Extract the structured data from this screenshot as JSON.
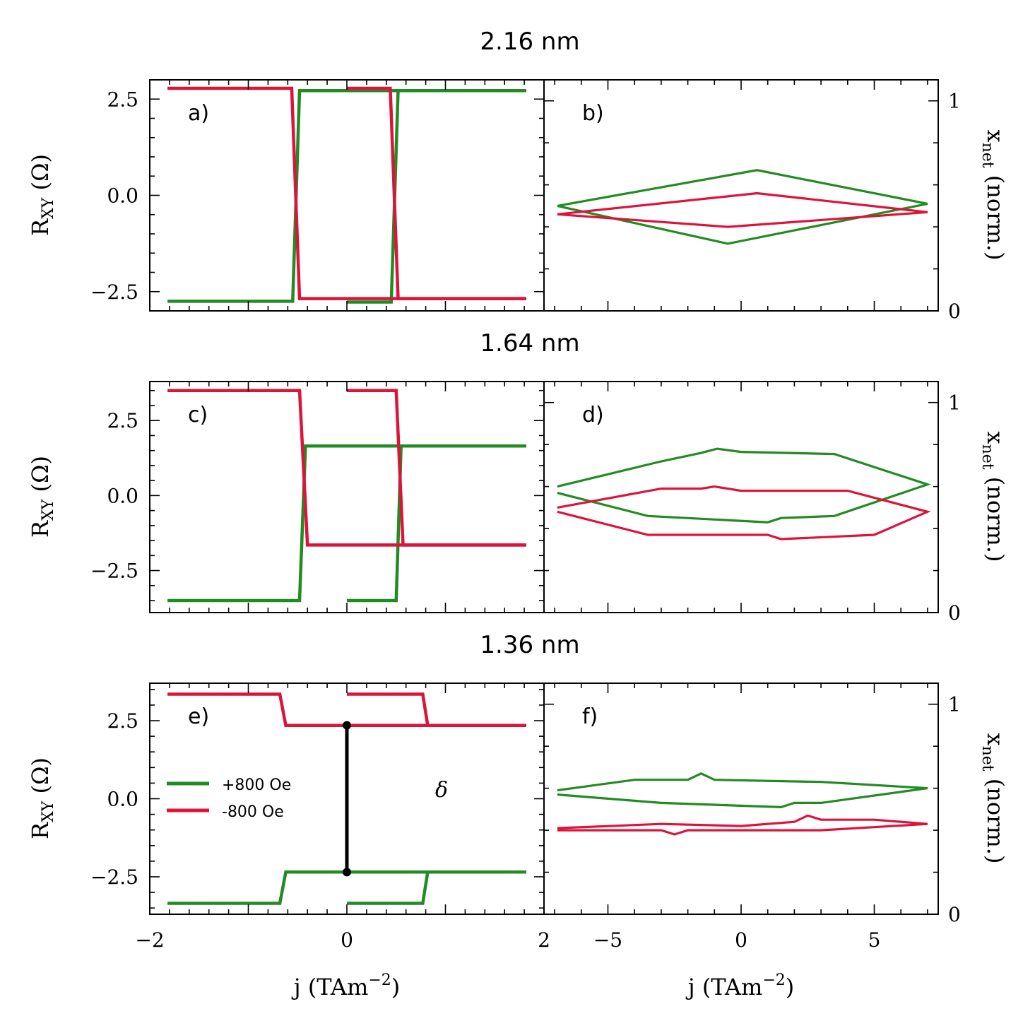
{
  "figure": {
    "colors": {
      "pos": "#228b22",
      "neg": "#dc143c",
      "delta": "#000000"
    },
    "legend": [
      {
        "label": "+800 Oe",
        "color": "#228b22"
      },
      {
        "label": "-800 Oe",
        "color": "#dc143c"
      }
    ],
    "delta_label": "δ",
    "x_label_left": "j (TAm",
    "x_label_right": "j (TAm",
    "x_label_exp": "−2",
    "y_label_left": "R",
    "y_label_left_sub": "XY",
    "y_label_left_unit": " (Ω)",
    "y_label_right": "x",
    "y_label_right_sub": "net",
    "y_label_right_unit": " (norm.)"
  },
  "chart_data": [
    {
      "type": "line",
      "panel": "a)",
      "title": "2.16 nm",
      "xlabel": "j (TAm−2)",
      "ylabel": "RXY (Ω)",
      "xlim": [
        -2,
        2
      ],
      "ylim": [
        -3.0,
        3.0
      ],
      "yticks": [
        2.5,
        0.0,
        -2.5
      ],
      "ytick_labels": [
        "2.5",
        "0.0",
        "−2.5"
      ],
      "series": [
        {
          "name": "+800 Oe",
          "color": "#228b22",
          "segments": [
            [
              [
                -1.82,
                -2.75
              ],
              [
                -0.55,
                -2.75
              ],
              [
                -0.48,
                2.72
              ],
              [
                1.82,
                2.72
              ]
            ],
            [
              [
                0.0,
                -2.77
              ],
              [
                0.45,
                -2.77
              ],
              [
                0.52,
                2.72
              ],
              [
                1.82,
                2.72
              ]
            ]
          ]
        },
        {
          "name": "-800 Oe",
          "color": "#dc143c",
          "segments": [
            [
              [
                -1.82,
                2.78
              ],
              [
                -0.56,
                2.78
              ],
              [
                -0.48,
                -2.68
              ],
              [
                1.82,
                -2.68
              ]
            ],
            [
              [
                0.0,
                2.78
              ],
              [
                0.44,
                2.78
              ],
              [
                0.52,
                -2.68
              ],
              [
                1.82,
                -2.68
              ]
            ]
          ]
        }
      ]
    },
    {
      "type": "line",
      "panel": "b)",
      "xlabel": "j (TAm−2)",
      "ylabel": "xnet (norm.)",
      "xlim": [
        -7.4,
        7.4
      ],
      "ylim": [
        0,
        1.1
      ],
      "yticks": [
        1,
        0
      ],
      "ytick_labels": [
        "1",
        "0"
      ],
      "series": [
        {
          "name": "+800 Oe",
          "color": "#228b22",
          "segments": [
            [
              [
                -6.9,
                0.5
              ],
              [
                0.6,
                0.67
              ],
              [
                7.0,
                0.51
              ],
              [
                -0.5,
                0.32
              ],
              [
                -6.9,
                0.5
              ]
            ]
          ]
        },
        {
          "name": "-800 Oe",
          "color": "#dc143c",
          "segments": [
            [
              [
                -6.9,
                0.46
              ],
              [
                0.6,
                0.56
              ],
              [
                7.0,
                0.47
              ],
              [
                -0.5,
                0.4
              ],
              [
                -6.9,
                0.46
              ]
            ]
          ]
        }
      ]
    },
    {
      "type": "line",
      "panel": "c)",
      "title": "1.64 nm",
      "xlabel": "j (TAm−2)",
      "ylabel": "RXY (Ω)",
      "xlim": [
        -2,
        2
      ],
      "ylim": [
        -3.9,
        3.8
      ],
      "yticks": [
        2.5,
        0.0,
        -2.5
      ],
      "ytick_labels": [
        "2.5",
        "0.0",
        "−2.5"
      ],
      "series": [
        {
          "name": "+800 Oe",
          "color": "#228b22",
          "segments": [
            [
              [
                -1.82,
                -3.5
              ],
              [
                -0.48,
                -3.5
              ],
              [
                -0.42,
                1.65
              ],
              [
                1.82,
                1.65
              ]
            ],
            [
              [
                0.0,
                -3.5
              ],
              [
                0.5,
                -3.5
              ],
              [
                0.55,
                1.65
              ],
              [
                1.82,
                1.65
              ]
            ]
          ]
        },
        {
          "name": "-800 Oe",
          "color": "#dc143c",
          "segments": [
            [
              [
                -1.82,
                3.5
              ],
              [
                -0.48,
                3.5
              ],
              [
                -0.4,
                -1.65
              ],
              [
                1.82,
                -1.65
              ]
            ],
            [
              [
                0.0,
                3.5
              ],
              [
                0.5,
                3.5
              ],
              [
                0.57,
                -1.65
              ],
              [
                1.82,
                -1.65
              ]
            ]
          ]
        }
      ]
    },
    {
      "type": "line",
      "panel": "d)",
      "xlabel": "j (TAm−2)",
      "ylabel": "xnet (norm.)",
      "xlim": [
        -7.4,
        7.4
      ],
      "ylim": [
        0,
        1.1
      ],
      "yticks": [
        1,
        0
      ],
      "ytick_labels": [
        "1",
        "0"
      ],
      "series": [
        {
          "name": "+800 Oe",
          "color": "#228b22",
          "segments": [
            [
              [
                -6.9,
                0.6
              ],
              [
                -3,
                0.72
              ],
              [
                -1.5,
                0.76
              ],
              [
                -0.9,
                0.78
              ],
              [
                0,
                0.765
              ],
              [
                3.5,
                0.755
              ],
              [
                7.0,
                0.61
              ],
              [
                3.5,
                0.46
              ],
              [
                1.5,
                0.45
              ],
              [
                1.0,
                0.43
              ],
              [
                -3.5,
                0.46
              ],
              [
                -6.9,
                0.57
              ]
            ]
          ]
        },
        {
          "name": "-800 Oe",
          "color": "#dc143c",
          "segments": [
            [
              [
                -6.9,
                0.5
              ],
              [
                -3,
                0.59
              ],
              [
                -1.5,
                0.59
              ],
              [
                -1.0,
                0.6
              ],
              [
                0,
                0.58
              ],
              [
                4.0,
                0.58
              ],
              [
                7.0,
                0.48
              ],
              [
                5.0,
                0.37
              ],
              [
                1.5,
                0.35
              ],
              [
                1.0,
                0.37
              ],
              [
                -3.5,
                0.37
              ],
              [
                -6.9,
                0.48
              ]
            ]
          ]
        }
      ]
    },
    {
      "type": "line",
      "panel": "e)",
      "title": "1.36 nm",
      "xlabel": "j (TAm−2)",
      "ylabel": "RXY (Ω)",
      "xlim": [
        -2,
        2
      ],
      "ylim": [
        -3.7,
        3.7
      ],
      "xticks": [
        -2,
        0,
        2
      ],
      "xtick_labels": [
        "−2",
        "0",
        "2"
      ],
      "yticks": [
        2.5,
        0.0,
        -2.5
      ],
      "ytick_labels": [
        "2.5",
        "0.0",
        "−2.5"
      ],
      "series": [
        {
          "name": "+800 Oe",
          "color": "#228b22",
          "segments": [
            [
              [
                -1.82,
                -3.35
              ],
              [
                -0.68,
                -3.35
              ],
              [
                -0.62,
                -2.35
              ],
              [
                1.82,
                -2.35
              ]
            ],
            [
              [
                0.0,
                -3.35
              ],
              [
                0.77,
                -3.35
              ],
              [
                0.82,
                -2.35
              ],
              [
                1.82,
                -2.35
              ]
            ]
          ]
        },
        {
          "name": "-800 Oe",
          "color": "#dc143c",
          "segments": [
            [
              [
                -1.82,
                3.35
              ],
              [
                -0.68,
                3.35
              ],
              [
                -0.62,
                2.35
              ],
              [
                1.82,
                2.35
              ]
            ],
            [
              [
                0.0,
                3.35
              ],
              [
                0.77,
                3.35
              ],
              [
                0.82,
                2.35
              ],
              [
                1.82,
                2.35
              ]
            ]
          ]
        }
      ],
      "annotation": {
        "label": "δ",
        "x": 0.0,
        "y_from": -2.35,
        "y_to": 2.35
      }
    },
    {
      "type": "line",
      "panel": "f)",
      "xlabel": "j (TAm−2)",
      "ylabel": "xnet (norm.)",
      "xlim": [
        -7.4,
        7.4
      ],
      "ylim": [
        0,
        1.1
      ],
      "xticks": [
        -5,
        0,
        5
      ],
      "xtick_labels": [
        "−5",
        "0",
        "5"
      ],
      "yticks": [
        1,
        0
      ],
      "ytick_labels": [
        "1",
        "0"
      ],
      "series": [
        {
          "name": "+800 Oe",
          "color": "#228b22",
          "segments": [
            [
              [
                -6.9,
                0.59
              ],
              [
                -4,
                0.64
              ],
              [
                -2,
                0.64
              ],
              [
                -1.5,
                0.67
              ],
              [
                -1,
                0.64
              ],
              [
                3,
                0.63
              ],
              [
                7.0,
                0.6
              ],
              [
                3,
                0.53
              ],
              [
                2,
                0.53
              ],
              [
                1.5,
                0.51
              ],
              [
                -3,
                0.53
              ],
              [
                -6.9,
                0.57
              ]
            ]
          ]
        },
        {
          "name": "-800 Oe",
          "color": "#dc143c",
          "segments": [
            [
              [
                -6.9,
                0.41
              ],
              [
                -3,
                0.43
              ],
              [
                0,
                0.42
              ],
              [
                2,
                0.44
              ],
              [
                2.5,
                0.47
              ],
              [
                3,
                0.45
              ],
              [
                5,
                0.45
              ],
              [
                7.0,
                0.43
              ],
              [
                3,
                0.4
              ],
              [
                -2,
                0.4
              ],
              [
                -2.5,
                0.38
              ],
              [
                -3,
                0.4
              ],
              [
                -6.9,
                0.4
              ]
            ]
          ]
        }
      ]
    }
  ]
}
